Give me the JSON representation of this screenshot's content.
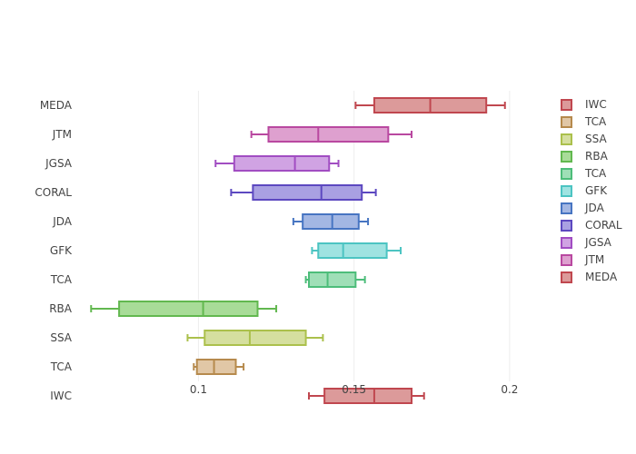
{
  "chart_data": {
    "type": "box",
    "orientation": "horizontal",
    "title": "",
    "xlabel": "",
    "ylabel": "",
    "xlim": [
      0.0625,
      0.2085
    ],
    "x_ticks": [
      {
        "value": 0.1,
        "label": "0.1"
      },
      {
        "value": 0.15,
        "label": "0.15"
      },
      {
        "value": 0.2,
        "label": "0.2"
      }
    ],
    "grid": true,
    "legend_position": "right",
    "series": [
      {
        "name": "IWC",
        "color": "#c0474f",
        "fill": "#dc9a9a",
        "min": 0.1355,
        "q1": 0.1405,
        "median": 0.1565,
        "q3": 0.1685,
        "max": 0.1725
      },
      {
        "name": "TCA",
        "color": "#b68a4d",
        "fill": "#e1c7a6",
        "min": 0.0985,
        "q1": 0.0995,
        "median": 0.105,
        "q3": 0.112,
        "max": 0.1145
      },
      {
        "name": "SSA",
        "color": "#abc04c",
        "fill": "#d5df9f",
        "min": 0.0965,
        "q1": 0.102,
        "median": 0.1165,
        "q3": 0.1345,
        "max": 0.14
      },
      {
        "name": "RBA",
        "color": "#62b84f",
        "fill": "#a8dc98",
        "min": 0.0655,
        "q1": 0.0745,
        "median": 0.1015,
        "q3": 0.119,
        "max": 0.125
      },
      {
        "name": "TCA",
        "color": "#4dbd7a",
        "fill": "#9fdfb7",
        "min": 0.1345,
        "q1": 0.1355,
        "median": 0.1415,
        "q3": 0.1505,
        "max": 0.1535
      },
      {
        "name": "GFK",
        "color": "#4cc4c2",
        "fill": "#9fe3e1",
        "min": 0.1365,
        "q1": 0.1385,
        "median": 0.1465,
        "q3": 0.1605,
        "max": 0.165
      },
      {
        "name": "JDA",
        "color": "#4775c2",
        "fill": "#a3b7e3",
        "min": 0.1305,
        "q1": 0.1335,
        "median": 0.143,
        "q3": 0.1515,
        "max": 0.1545
      },
      {
        "name": "CORAL",
        "color": "#5c48c0",
        "fill": "#a9a0e2",
        "min": 0.1105,
        "q1": 0.1175,
        "median": 0.1395,
        "q3": 0.1525,
        "max": 0.157
      },
      {
        "name": "JGSA",
        "color": "#a14dc2",
        "fill": "#d0a3e3",
        "min": 0.1055,
        "q1": 0.1115,
        "median": 0.131,
        "q3": 0.142,
        "max": 0.145
      },
      {
        "name": "JTM",
        "color": "#b948a0",
        "fill": "#dea0cf",
        "min": 0.117,
        "q1": 0.1225,
        "median": 0.1385,
        "q3": 0.161,
        "max": 0.1685
      },
      {
        "name": "MEDA",
        "color": "#c0474f",
        "fill": "#dc9a9a",
        "min": 0.1505,
        "q1": 0.1565,
        "median": 0.1745,
        "q3": 0.1925,
        "max": 0.1985
      }
    ]
  }
}
